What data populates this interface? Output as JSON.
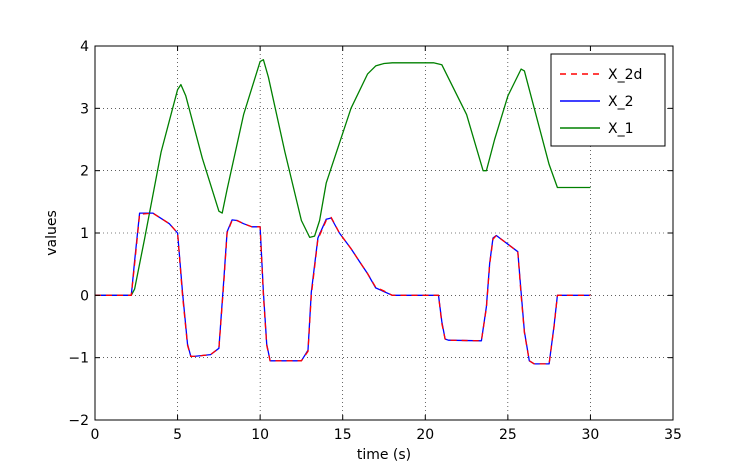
{
  "chart_data": {
    "type": "line",
    "title": "",
    "xlabel": "time (s)",
    "ylabel": "values",
    "xlim": [
      0,
      35
    ],
    "ylim": [
      -2,
      4
    ],
    "xticks": [
      0,
      5,
      10,
      15,
      20,
      25,
      30,
      35
    ],
    "yticks": [
      -2,
      -1,
      0,
      1,
      2,
      3,
      4
    ],
    "xtick_labels": [
      "0",
      "5",
      "10",
      "15",
      "20",
      "25",
      "30",
      "35"
    ],
    "ytick_labels": [
      "−2",
      "−1",
      "0",
      "1",
      "2",
      "3",
      "4"
    ],
    "grid": true,
    "legend_position": "top-right",
    "series": [
      {
        "name": "X_2d",
        "color": "#ff0000",
        "style": "dashed",
        "x": [
          0,
          2.2,
          2.4,
          2.7,
          3.5,
          4.5,
          5.0,
          5.3,
          5.6,
          5.8,
          6.0,
          7.0,
          7.5,
          7.8,
          8.0,
          8.3,
          8.6,
          9.0,
          9.5,
          10.0,
          10.2,
          10.4,
          10.6,
          12.5,
          12.9,
          13.1,
          13.5,
          14.0,
          14.3,
          14.8,
          15.5,
          16.0,
          16.5,
          17.0,
          17.5,
          18.0,
          20.8,
          21.0,
          21.2,
          21.4,
          23.4,
          23.7,
          23.9,
          24.1,
          24.3,
          25.0,
          25.6,
          25.8,
          26.0,
          26.3,
          26.6,
          27.5,
          27.8,
          28.0,
          28.2,
          30.0
        ],
        "y": [
          0,
          0,
          0.5,
          1.3,
          1.32,
          1.15,
          1.0,
          0.0,
          -0.8,
          -0.98,
          -0.98,
          -0.95,
          -0.85,
          0.2,
          1.0,
          1.2,
          1.2,
          1.15,
          1.1,
          1.1,
          0.0,
          -0.8,
          -1.05,
          -1.05,
          -0.9,
          0.0,
          0.9,
          1.2,
          1.25,
          1.0,
          0.75,
          0.55,
          0.35,
          0.13,
          0.07,
          0,
          0,
          -0.45,
          -0.7,
          -0.72,
          -0.73,
          -0.2,
          0.5,
          0.9,
          0.96,
          0.82,
          0.7,
          0.0,
          -0.6,
          -1.05,
          -1.1,
          -1.1,
          -0.5,
          0.0,
          0.0,
          0.0
        ]
      },
      {
        "name": "X_2",
        "color": "#0000ff",
        "style": "solid",
        "x": [
          0,
          2.2,
          2.4,
          2.7,
          3.5,
          4.5,
          5.0,
          5.3,
          5.6,
          5.8,
          6.0,
          7.0,
          7.5,
          7.8,
          8.0,
          8.3,
          8.6,
          9.0,
          9.5,
          10.0,
          10.2,
          10.4,
          10.6,
          12.5,
          12.9,
          13.1,
          13.5,
          14.0,
          14.3,
          14.8,
          15.5,
          16.0,
          16.5,
          17.0,
          17.5,
          18.0,
          20.8,
          21.0,
          21.2,
          21.4,
          23.4,
          23.7,
          23.9,
          24.1,
          24.3,
          25.0,
          25.6,
          25.8,
          26.0,
          26.3,
          26.6,
          27.5,
          27.8,
          28.0,
          28.2,
          30.0
        ],
        "y": [
          0,
          0,
          0.55,
          1.32,
          1.32,
          1.15,
          1.0,
          0.05,
          -0.78,
          -0.98,
          -0.98,
          -0.95,
          -0.85,
          0.25,
          1.02,
          1.21,
          1.2,
          1.15,
          1.1,
          1.1,
          0.05,
          -0.78,
          -1.05,
          -1.05,
          -0.88,
          0.05,
          0.92,
          1.22,
          1.24,
          1.0,
          0.75,
          0.55,
          0.35,
          0.12,
          0.06,
          0,
          0,
          -0.42,
          -0.7,
          -0.72,
          -0.73,
          -0.18,
          0.52,
          0.92,
          0.96,
          0.82,
          0.7,
          0.05,
          -0.58,
          -1.05,
          -1.1,
          -1.1,
          -0.48,
          0.0,
          0.0,
          0.0
        ]
      },
      {
        "name": "X_1",
        "color": "#008000",
        "style": "solid",
        "x": [
          0,
          2.2,
          2.4,
          3.0,
          4.0,
          5.0,
          5.2,
          5.5,
          6.5,
          7.5,
          7.7,
          8.0,
          9.0,
          10.0,
          10.2,
          10.5,
          11.5,
          12.5,
          13.0,
          13.3,
          13.6,
          14.0,
          15.5,
          16.5,
          17.0,
          17.5,
          18.0,
          19.0,
          20.5,
          21.0,
          22.5,
          23.5,
          23.7,
          24.2,
          25.0,
          25.8,
          26.0,
          26.5,
          27.5,
          28.0,
          30.0
        ],
        "y": [
          0,
          0,
          0.1,
          0.9,
          2.3,
          3.3,
          3.38,
          3.2,
          2.2,
          1.35,
          1.32,
          1.7,
          2.9,
          3.75,
          3.78,
          3.5,
          2.3,
          1.2,
          0.93,
          0.95,
          1.2,
          1.8,
          3.0,
          3.55,
          3.68,
          3.72,
          3.73,
          3.73,
          3.73,
          3.7,
          2.9,
          2.0,
          2.0,
          2.5,
          3.2,
          3.63,
          3.6,
          3.1,
          2.1,
          1.73,
          1.73
        ]
      }
    ]
  }
}
